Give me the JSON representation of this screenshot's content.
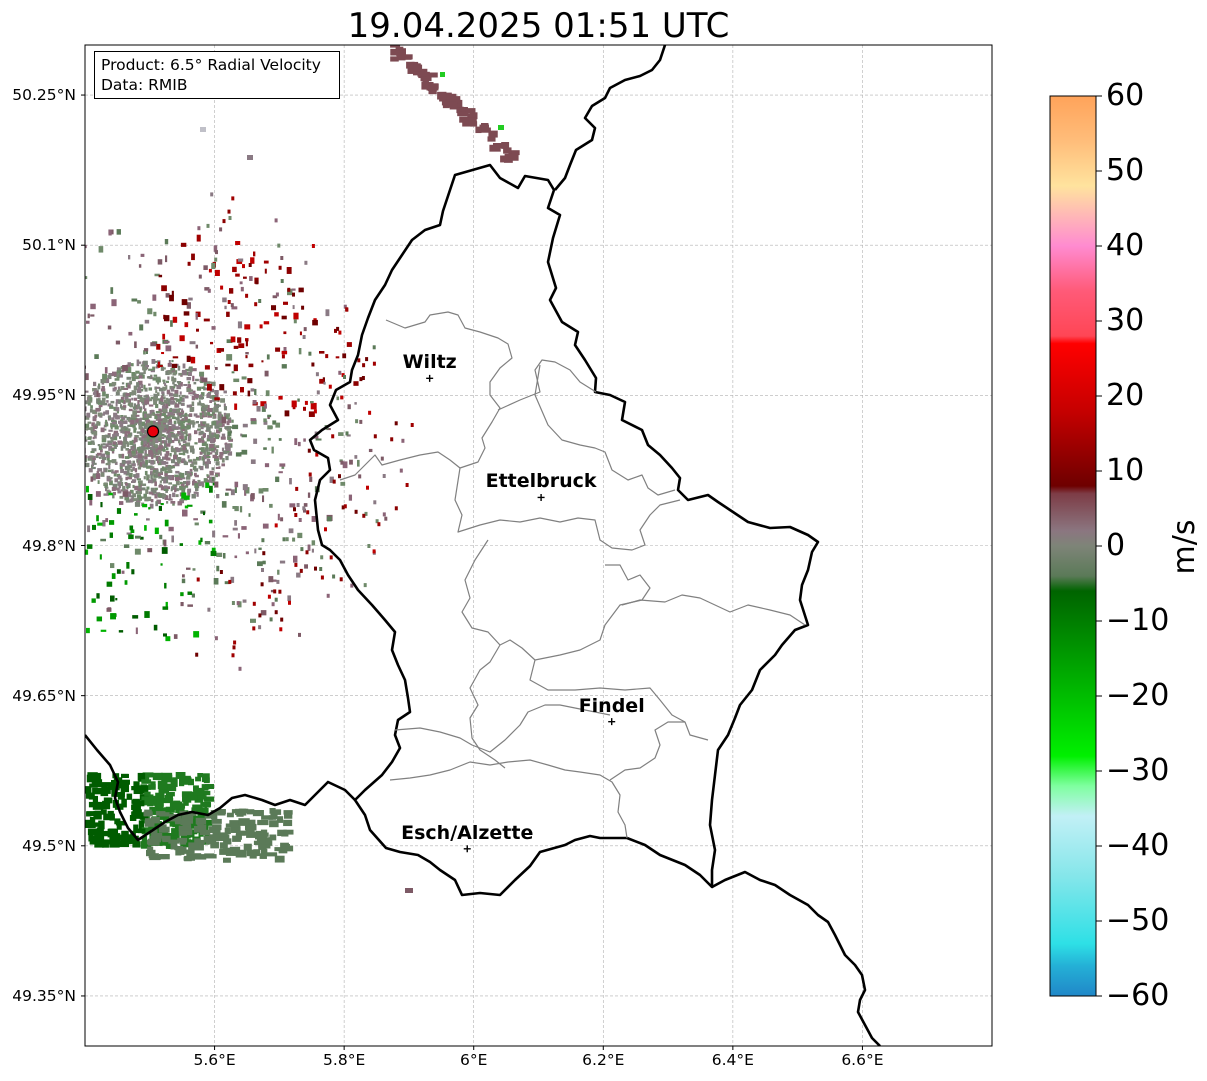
{
  "title": "19.04.2025 01:51 UTC",
  "info_box": {
    "product": "Product: 6.5° Radial Velocity",
    "data_source": "Data: RMIB"
  },
  "map": {
    "lon_range": [
      5.4,
      6.8
    ],
    "lat_range": [
      49.3,
      50.3
    ],
    "lat_ticks": [
      {
        "value": 50.25,
        "label": "50.25°N"
      },
      {
        "value": 50.1,
        "label": "50.1°N"
      },
      {
        "value": 49.95,
        "label": "49.95°N"
      },
      {
        "value": 49.8,
        "label": "49.8°N"
      },
      {
        "value": 49.65,
        "label": "49.65°N"
      },
      {
        "value": 49.5,
        "label": "49.5°N"
      },
      {
        "value": 49.35,
        "label": "49.35°N"
      }
    ],
    "lon_ticks": [
      {
        "value": 5.6,
        "label": "5.6°E"
      },
      {
        "value": 5.8,
        "label": "5.8°E"
      },
      {
        "value": 6.0,
        "label": "6°E"
      },
      {
        "value": 6.2,
        "label": "6.2°E"
      },
      {
        "value": 6.4,
        "label": "6.4°E"
      },
      {
        "value": 6.6,
        "label": "6.6°E"
      }
    ],
    "grid": true,
    "radar_site": {
      "lon": 5.505,
      "lat": 49.914,
      "color": "#e8000b"
    },
    "cities": [
      {
        "name": "Wiltz",
        "lon": 5.932,
        "lat": 49.967
      },
      {
        "name": "Ettelbruck",
        "lon": 6.104,
        "lat": 49.848
      },
      {
        "name": "Findel",
        "lon": 6.213,
        "lat": 49.624
      },
      {
        "name": "Esch/Alzette",
        "lon": 5.99,
        "lat": 49.497
      }
    ]
  },
  "colorbar": {
    "unit": "m/s",
    "vmin": -60,
    "vmax": 60,
    "ticks": [
      {
        "value": 60,
        "label": "60"
      },
      {
        "value": 50,
        "label": "50"
      },
      {
        "value": 40,
        "label": "40"
      },
      {
        "value": 30,
        "label": "30"
      },
      {
        "value": 20,
        "label": "20"
      },
      {
        "value": 10,
        "label": "10"
      },
      {
        "value": 0,
        "label": "0"
      },
      {
        "value": -10,
        "label": "−10"
      },
      {
        "value": -20,
        "label": "−20"
      },
      {
        "value": -30,
        "label": "−30"
      },
      {
        "value": -40,
        "label": "−40"
      },
      {
        "value": -50,
        "label": "−50"
      },
      {
        "value": -60,
        "label": "−60"
      }
    ],
    "stops": [
      {
        "value": 60,
        "color": "#ffa35a"
      },
      {
        "value": 54,
        "color": "#ffbd7a"
      },
      {
        "value": 48,
        "color": "#ffe39e"
      },
      {
        "value": 44,
        "color": "#ffb7b7"
      },
      {
        "value": 40,
        "color": "#ff8bd0"
      },
      {
        "value": 34,
        "color": "#ff5a78"
      },
      {
        "value": 28,
        "color": "#ff4655"
      },
      {
        "value": 27,
        "color": "#ff0000"
      },
      {
        "value": 18,
        "color": "#c60000"
      },
      {
        "value": 8,
        "color": "#6e0000"
      },
      {
        "value": 7,
        "color": "#7d3c46"
      },
      {
        "value": 2,
        "color": "#8b7680"
      },
      {
        "value": 0,
        "color": "#7e8478"
      },
      {
        "value": -4,
        "color": "#5b7a58"
      },
      {
        "value": -6,
        "color": "#006400"
      },
      {
        "value": -18,
        "color": "#00b000"
      },
      {
        "value": -28,
        "color": "#00f000"
      },
      {
        "value": -32,
        "color": "#7fffa0"
      },
      {
        "value": -36,
        "color": "#c2f0f6"
      },
      {
        "value": -44,
        "color": "#85e6ea"
      },
      {
        "value": -53,
        "color": "#2ee0e6"
      },
      {
        "value": -56,
        "color": "#24b0d6"
      },
      {
        "value": -60,
        "color": "#2087c8"
      }
    ]
  }
}
